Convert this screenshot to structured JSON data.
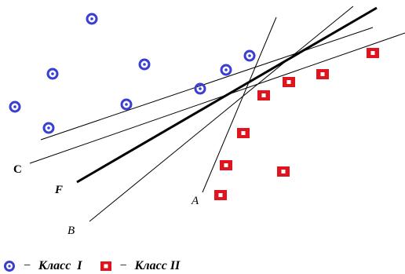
{
  "diagram": {
    "line_labels": {
      "a": "A",
      "b": "B",
      "c": "C",
      "f": "F"
    },
    "colors": {
      "class_i": "#3a3fd0",
      "class_ii": "#e0141e",
      "lines": "#000000"
    },
    "legend": {
      "class_i_label": "Класс  I",
      "class_ii_label": "Класс II",
      "dash": "−"
    }
  }
}
